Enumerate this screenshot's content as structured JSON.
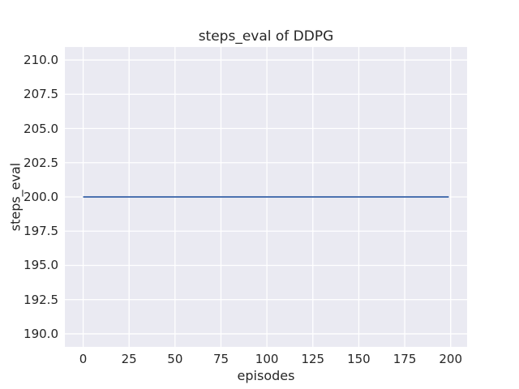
{
  "figure": {
    "background_color": "#ffffff",
    "text_color": "#262626"
  },
  "chart_data": {
    "type": "line",
    "title": "steps_eval of DDPG",
    "xlabel": "episodes",
    "ylabel": "steps_eval",
    "xlim": [
      -9.95,
      208.95
    ],
    "ylim": [
      189.05,
      210.95
    ],
    "x_ticks": [
      0,
      25,
      50,
      75,
      100,
      125,
      150,
      175,
      200
    ],
    "x_tick_labels": [
      "0",
      "25",
      "50",
      "75",
      "100",
      "125",
      "150",
      "175",
      "200"
    ],
    "y_ticks": [
      190,
      192.5,
      195,
      197.5,
      200,
      202.5,
      205,
      207.5,
      210
    ],
    "y_tick_labels": [
      "190.0",
      "192.5",
      "195.0",
      "197.5",
      "200.0",
      "202.5",
      "205.0",
      "207.5",
      "210.0"
    ],
    "grid": true,
    "legend_position": "none",
    "plot_bg_color": "#eaeaf2",
    "grid_color": "#ffffff",
    "series": [
      {
        "name": "DDPG steps_eval",
        "color": "#4c72b0",
        "x": [
          0,
          199
        ],
        "values": [
          200,
          200
        ]
      }
    ]
  }
}
